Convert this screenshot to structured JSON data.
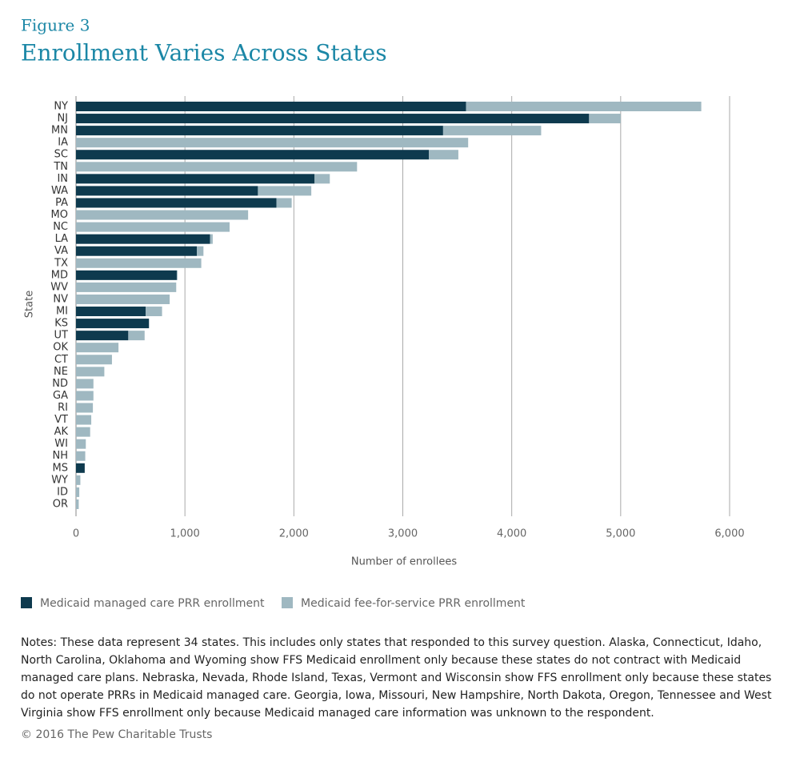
{
  "chart_data": {
    "type": "stacked-barh",
    "figure_label": "Figure 3",
    "title": "Enrollment Varies Across States",
    "x_label": "Number of enrollees",
    "y_label": "State",
    "categories": [
      "NY",
      "NJ",
      "MN",
      "IA",
      "SC",
      "TN",
      "IN",
      "WA",
      "PA",
      "MO",
      "NC",
      "LA",
      "VA",
      "TX",
      "MD",
      "WV",
      "NV",
      "MI",
      "KS",
      "UT",
      "OK",
      "CT",
      "NE",
      "ND",
      "GA",
      "RI",
      "VT",
      "AK",
      "WI",
      "NH",
      "MS",
      "WY",
      "ID",
      "OR"
    ],
    "series": [
      {
        "name": "Medicaid managed care PRR enrollment",
        "color": "#0e3a4e",
        "values": [
          3580,
          4710,
          3370,
          null,
          3240,
          null,
          2190,
          1670,
          1840,
          null,
          null,
          1230,
          1110,
          null,
          925,
          null,
          null,
          640,
          670,
          480,
          null,
          null,
          null,
          null,
          null,
          null,
          null,
          null,
          null,
          null,
          80,
          null,
          null,
          null
        ]
      },
      {
        "name": "Medicaid fee-for-service PRR enrollment",
        "color": "#9fb8c1",
        "values": [
          2160,
          290,
          900,
          3600,
          270,
          2580,
          140,
          490,
          140,
          1580,
          1410,
          25,
          60,
          1150,
          7,
          920,
          860,
          150,
          null,
          150,
          390,
          330,
          260,
          160,
          160,
          155,
          140,
          130,
          90,
          85,
          null,
          40,
          30,
          25
        ]
      }
    ],
    "xlim": [
      0,
      6000
    ],
    "xticks": [
      0,
      {
        "value": 1000,
        "label": "1,000"
      },
      {
        "value": 2000,
        "label": "2,000"
      },
      {
        "value": 3000,
        "label": "3,000"
      },
      {
        "value": 4000,
        "label": "4,000"
      },
      {
        "value": 5000,
        "label": "5,000"
      },
      {
        "value": 6000,
        "label": "6,000"
      }
    ],
    "grid": true,
    "notes": "Notes: These data represent 34 states. This includes only states that responded to this survey question. Alaska, Connecticut, Idaho, North Carolina, Oklahoma and Wyoming show FFS Medicaid enrollment only because these states do not contract with Medicaid managed care plans. Nebraska, Nevada, Rhode Island, Texas, Vermont and Wisconsin show FFS enrollment only because these states do not operate PRRs in Medicaid managed care. Georgia, Iowa, Missouri, New Hampshire, North Dakota, Oregon, Tennessee and West Virginia show FFS enrollment only because Medicaid managed care information was unknown to the respondent.",
    "source": "© 2016 The Pew Charitable Trusts"
  }
}
